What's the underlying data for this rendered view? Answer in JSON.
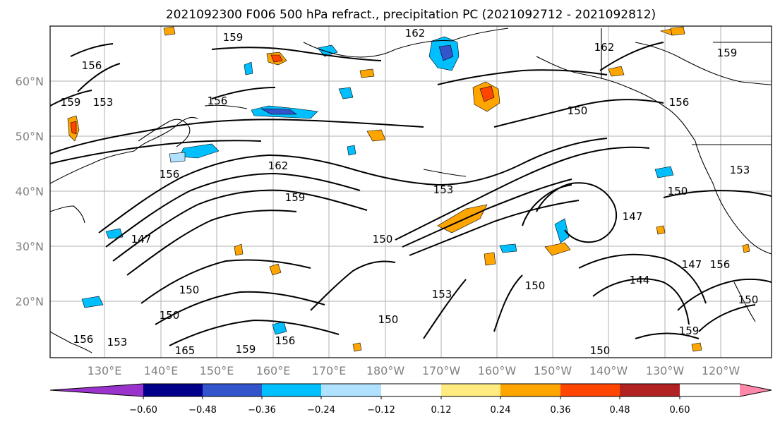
{
  "title": "2021092300 F006 500 hPa refract., precipitation PC (2021092712 - 2021092812)",
  "lat_labels": [
    "60°N",
    "50°N",
    "40°N",
    "30°N",
    "20°N"
  ],
  "lon_labels": [
    "130°E",
    "140°E",
    "150°E",
    "160°E",
    "170°E",
    "180°W",
    "170°W",
    "160°W",
    "150°W",
    "140°W",
    "130°W",
    "120°W"
  ],
  "colorbar": {
    "labels": [
      "−0.60",
      "−0.48",
      "−0.36",
      "−0.24",
      "−0.12",
      "0.12",
      "0.24",
      "0.36",
      "0.48",
      "0.60"
    ],
    "colors": [
      "#9933cc",
      "#00008b",
      "#3355cc",
      "#00bfff",
      "#b0e2ff",
      "#ffffff",
      "#ffeb80",
      "#ffa500",
      "#ff4500",
      "#b22222",
      "#ff88aa"
    ]
  },
  "contour_labels": [
    "159",
    "156",
    "153",
    "162",
    "159",
    "156",
    "153",
    "150",
    "147",
    "150",
    "162",
    "159",
    "156",
    "153",
    "150",
    "147",
    "144",
    "150",
    "150",
    "159",
    "156",
    "165",
    "159",
    "156",
    "150",
    "162",
    "156",
    "153",
    "150",
    "150",
    "147",
    "159",
    "156",
    "153",
    "150"
  ]
}
